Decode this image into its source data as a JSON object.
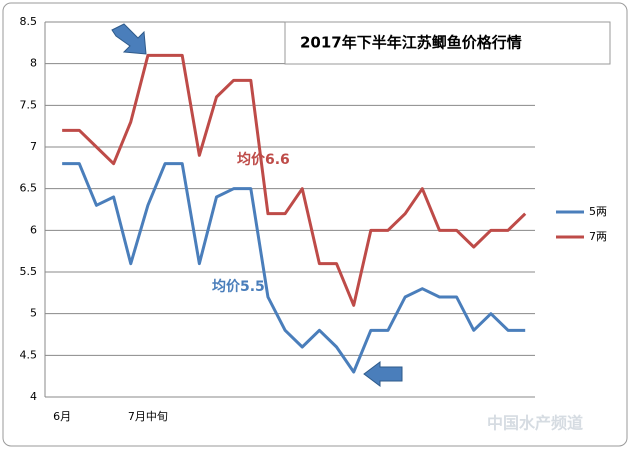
{
  "chart_data": {
    "type": "line",
    "title": "2017年下半年江苏鲫鱼价格行情",
    "categories": [
      "6月",
      null,
      null,
      null,
      null,
      "7月中旬",
      null,
      null,
      null,
      null,
      null,
      null,
      null,
      null,
      null,
      null,
      null,
      null,
      null,
      null,
      null,
      null,
      null,
      null,
      null,
      null,
      null,
      null
    ],
    "series": [
      {
        "name": "5两",
        "color": "#4a7ebb",
        "values": [
          6.8,
          6.8,
          6.3,
          6.4,
          5.6,
          6.3,
          6.8,
          6.8,
          5.6,
          6.4,
          6.5,
          6.5,
          5.2,
          4.8,
          4.6,
          4.8,
          4.6,
          4.3,
          4.8,
          4.8,
          5.2,
          5.3,
          5.2,
          5.2,
          4.8,
          5.0,
          4.8,
          4.8
        ]
      },
      {
        "name": "7两",
        "color": "#be4b48",
        "values": [
          7.2,
          7.2,
          7.0,
          6.8,
          7.3,
          8.1,
          8.1,
          8.1,
          6.9,
          7.6,
          7.8,
          7.8,
          6.2,
          6.2,
          6.5,
          5.6,
          5.6,
          5.1,
          6.0,
          6.0,
          6.2,
          6.5,
          6.0,
          6.0,
          5.8,
          6.0,
          6.0,
          6.2
        ]
      }
    ],
    "ylim": [
      4,
      8.5
    ],
    "yticks": [
      4,
      4.5,
      5,
      5.5,
      6,
      6.5,
      7,
      7.5,
      8,
      8.5
    ],
    "grid": true,
    "annotations": [
      "均价6.6",
      "均价5.5"
    ],
    "watermark": "中国水产频道"
  }
}
